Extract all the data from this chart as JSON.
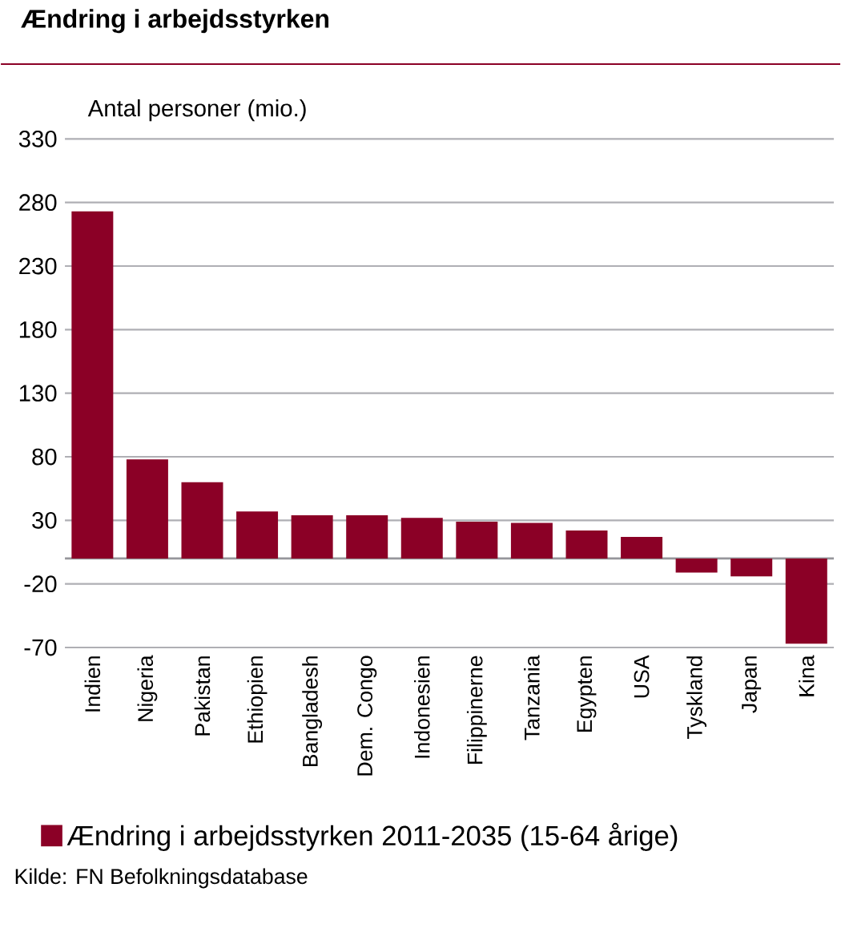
{
  "chart_data": {
    "type": "bar",
    "title": "Ændring i arbejdsstyrken",
    "ylabel": "Antal personer (mio.)",
    "categories": [
      "Indien",
      "Nigeria",
      "Pakistan",
      "Ethiopien",
      "Bangladesh",
      "Dem. Congo",
      "Indonesien",
      "Filippinerne",
      "Tanzania",
      "Egypten",
      "USA",
      "Tyskland",
      "Japan",
      "Kina"
    ],
    "series": [
      {
        "name": "Ændring i arbejdsstyrken 2011-2035 (15-64 årige)",
        "color": "#8b0026",
        "values": [
          273,
          78,
          60,
          37,
          34,
          34,
          32,
          29,
          28,
          22,
          17,
          -11,
          -14,
          -67
        ]
      }
    ],
    "ylim": [
      -70,
      330
    ],
    "yticks": [
      -70,
      -20,
      30,
      80,
      130,
      180,
      230,
      280,
      330
    ],
    "grid": "y",
    "legend": "bottom",
    "annotations": [
      "Kilde: FN Befolkningsdatabase"
    ]
  }
}
